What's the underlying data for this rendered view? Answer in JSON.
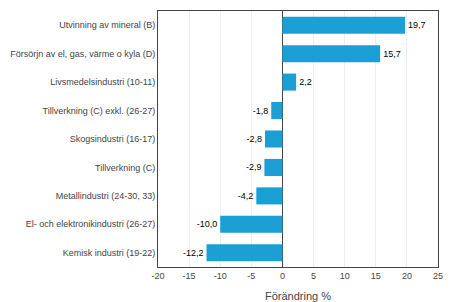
{
  "chart_data": {
    "type": "bar",
    "orientation": "horizontal",
    "categories": [
      "Kemisk industri (19-22)",
      "El- och elektronikindustri (26-27)",
      "Metallindustri (24-30, 33)",
      "Tillverkning (C)",
      "Skogsindustri (16-17)",
      "Tillverkning (C) exkl. (26-27)",
      "Livsmedelsindustri (10-11)",
      "Försörjn av el, gas, värme o kyla (D)",
      "Utvinning av mineral (B)"
    ],
    "values": [
      -12.2,
      -10.0,
      -4.2,
      -2.9,
      -2.8,
      -1.8,
      2.2,
      15.7,
      19.7
    ],
    "value_labels": [
      "-12,2",
      "-10,0",
      "-4,2",
      "-2,9",
      "-2,8",
      "-1,8",
      "2,2",
      "15,7",
      "19,7"
    ],
    "data_labels": true,
    "color": "#1c9fd4",
    "xlabel": "Förändring %",
    "xlim": [
      -20,
      25
    ],
    "xticks": [
      -20,
      -15,
      -10,
      -5,
      0,
      5,
      10,
      15,
      20,
      25
    ],
    "grid": true
  }
}
